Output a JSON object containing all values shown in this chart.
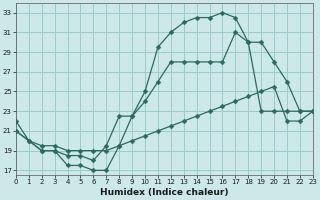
{
  "xlabel": "Humidex (Indice chaleur)",
  "bg_color": "#cce8e8",
  "grid_color": "#99cccc",
  "line_color": "#2a6b5e",
  "xlim": [
    0,
    23
  ],
  "ylim": [
    16.5,
    34
  ],
  "xticks": [
    0,
    1,
    2,
    3,
    4,
    5,
    6,
    7,
    8,
    9,
    10,
    11,
    12,
    13,
    14,
    15,
    16,
    17,
    18,
    19,
    20,
    21,
    22,
    23
  ],
  "yticks": [
    17,
    19,
    21,
    23,
    25,
    27,
    29,
    31,
    33
  ],
  "line1_x": [
    0,
    1,
    2,
    3,
    4,
    5,
    6,
    7,
    8,
    9,
    10,
    11,
    12,
    13,
    14,
    15,
    16,
    17,
    18,
    19,
    20,
    21,
    22,
    23
  ],
  "line1_y": [
    22,
    20,
    19,
    19,
    17.5,
    17.5,
    17,
    17,
    19.5,
    22.5,
    25.0,
    29.5,
    31.0,
    32.0,
    32.5,
    32.5,
    33.0,
    32.5,
    30.0,
    23.0,
    23.0,
    23.0,
    23.0,
    23.0
  ],
  "line1_markers": [
    0,
    2,
    7,
    9,
    10,
    11,
    12,
    13,
    14,
    15,
    16,
    17,
    18,
    19,
    20,
    21,
    22,
    23
  ],
  "line2_x": [
    0,
    2,
    3,
    4,
    5,
    6,
    7,
    8,
    9,
    10,
    11,
    12,
    13,
    14,
    15,
    16,
    17,
    18,
    19,
    20,
    21,
    22,
    23
  ],
  "line2_y": [
    21,
    19,
    19,
    18.5,
    18.5,
    18,
    19.5,
    22.5,
    22.5,
    24.0,
    26.0,
    28.0,
    28.0,
    28.0,
    28.0,
    28.0,
    31.0,
    30.0,
    30.0,
    28.0,
    26.0,
    23.0,
    23.0
  ],
  "line3_x": [
    0,
    1,
    2,
    3,
    4,
    5,
    6,
    7,
    8,
    9,
    10,
    11,
    12,
    13,
    14,
    15,
    16,
    17,
    18,
    19,
    20,
    21,
    22,
    23
  ],
  "line3_y": [
    21,
    20,
    19.5,
    19.5,
    19.0,
    19.0,
    19.0,
    19.0,
    19.5,
    20.0,
    20.5,
    21.0,
    21.5,
    22.0,
    22.5,
    23.0,
    23.5,
    24.0,
    24.5,
    25.0,
    25.5,
    22.0,
    22.0,
    23.0
  ],
  "marker": "D",
  "marker_size": 2.5,
  "linewidth": 0.9,
  "xlabel_fontsize": 6.5,
  "tick_fontsize": 5.0
}
